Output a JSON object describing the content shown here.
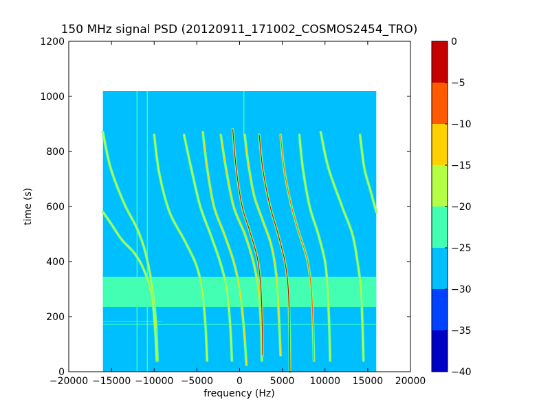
{
  "chart_data": {
    "type": "heatmap",
    "title": "150 MHz signal PSD (20120911_171002_COSMOS2454_TRO)",
    "xlabel": "frequency (Hz)",
    "ylabel": "time (s)",
    "xlim": [
      -20000,
      20000
    ],
    "ylim": [
      0,
      1200
    ],
    "x_ticks": [
      -20000,
      -15000,
      -10000,
      -5000,
      0,
      5000,
      10000,
      15000,
      20000
    ],
    "x_tick_labels": [
      "−20000",
      "−15000",
      "−10000",
      "−5000",
      "0",
      "5000",
      "10000",
      "15000",
      "20000"
    ],
    "y_ticks": [
      0,
      200,
      400,
      600,
      800,
      1000,
      1200
    ],
    "y_tick_labels": [
      "0",
      "200",
      "400",
      "600",
      "800",
      "1000",
      "1200"
    ],
    "data_extent": {
      "x": [
        -16000,
        16000
      ],
      "y": [
        0,
        1020
      ]
    },
    "background_level_db": -28,
    "interference_band": {
      "y": [
        235,
        345
      ],
      "level_db": -22.5
    },
    "stripes": [
      {
        "x": -12000,
        "y": [
          0,
          1020
        ]
      },
      {
        "x": -10800,
        "y": [
          0,
          1020
        ]
      },
      {
        "x": 500,
        "y": [
          860,
          1020
        ]
      }
    ],
    "horizontal_lines": [
      {
        "y": 172,
        "x": [
          -16000,
          16000
        ]
      },
      {
        "y": 182,
        "x": [
          -16000,
          -9000
        ]
      }
    ],
    "traces": [
      {
        "x": [
          -16000,
          -15100,
          -13500,
          -12000,
          -11000,
          -10200,
          -9800,
          -9600
        ],
        "y": [
          870,
          740,
          610,
          520,
          430,
          300,
          180,
          40
        ],
        "peak_db": -20
      },
      {
        "x": [
          -16000,
          -15200,
          -13800,
          -12300,
          -11200,
          -10300,
          -9900,
          -9700
        ],
        "y": [
          580,
          545,
          480,
          430,
          370,
          280,
          160,
          40
        ],
        "peak_db": -20
      },
      {
        "x": [
          -10000,
          -9400,
          -8200,
          -6500,
          -5100,
          -4400,
          -4000,
          -3800
        ],
        "y": [
          860,
          720,
          580,
          480,
          390,
          300,
          170,
          40
        ],
        "peak_db": -21
      },
      {
        "x": [
          -6500,
          -5600,
          -4600,
          -3300,
          -2200,
          -1500,
          -1100,
          -900
        ],
        "y": [
          860,
          730,
          600,
          490,
          390,
          300,
          170,
          40
        ],
        "peak_db": -20
      },
      {
        "x": [
          -4300,
          -3800,
          -3000,
          -1800,
          -700,
          0,
          500,
          800
        ],
        "y": [
          870,
          740,
          600,
          500,
          400,
          300,
          160,
          25
        ],
        "peak_db": -13
      },
      {
        "x": [
          -2200,
          -1600,
          -700,
          600,
          1600,
          2200,
          2500,
          2600
        ],
        "y": [
          860,
          740,
          600,
          500,
          400,
          300,
          170,
          40
        ],
        "peak_db": -14
      },
      {
        "x": [
          -800,
          -400,
          300,
          1200,
          2100,
          2500,
          2650,
          2700
        ],
        "y": [
          880,
          740,
          600,
          510,
          410,
          300,
          170,
          60
        ],
        "peak_db": -4
      },
      {
        "x": [
          600,
          1000,
          1700,
          2700,
          3700,
          4300,
          4600,
          4800
        ],
        "y": [
          860,
          760,
          640,
          550,
          460,
          350,
          200,
          60
        ],
        "peak_db": -14
      },
      {
        "x": [
          2300,
          2700,
          3500,
          4500,
          5300,
          5700,
          5850,
          5900
        ],
        "y": [
          860,
          740,
          610,
          500,
          400,
          300,
          140,
          0
        ],
        "peak_db": -4
      },
      {
        "x": [
          4800,
          5200,
          6000,
          7000,
          7900,
          8400,
          8600,
          8700
        ],
        "y": [
          860,
          740,
          610,
          500,
          410,
          300,
          160,
          40
        ],
        "peak_db": -8
      },
      {
        "x": [
          7000,
          7400,
          8200,
          9200,
          10000,
          10300,
          10500,
          10600
        ],
        "y": [
          860,
          740,
          600,
          500,
          400,
          300,
          160,
          40
        ],
        "peak_db": -17
      },
      {
        "x": [
          9500,
          10400,
          12000,
          13200,
          13800,
          14200,
          14400,
          14500
        ],
        "y": [
          870,
          740,
          600,
          500,
          400,
          300,
          160,
          40
        ],
        "peak_db": -20
      },
      {
        "x": [
          14100,
          14600,
          15300,
          16000
        ],
        "y": [
          860,
          740,
          660,
          580
        ],
        "peak_db": -20
      }
    ],
    "colorbar": {
      "ticks": [
        0,
        -5,
        -10,
        -15,
        -20,
        -25,
        -30,
        -35,
        -40
      ],
      "tick_labels": [
        "0",
        "−5",
        "−10",
        "−15",
        "−20",
        "−25",
        "−30",
        "−35",
        "−40"
      ],
      "range": [
        -40,
        0
      ],
      "levels": [
        {
          "min": -40,
          "max": -35,
          "color": "#0000c4"
        },
        {
          "min": -35,
          "max": -30,
          "color": "#0042ff"
        },
        {
          "min": -30,
          "max": -25,
          "color": "#00bfff"
        },
        {
          "min": -25,
          "max": -20,
          "color": "#43ffb4"
        },
        {
          "min": -20,
          "max": -15,
          "color": "#b4ff43"
        },
        {
          "min": -15,
          "max": -10,
          "color": "#ffd100"
        },
        {
          "min": -10,
          "max": -5,
          "color": "#ff5a00"
        },
        {
          "min": -5,
          "max": 0,
          "color": "#c40000"
        }
      ]
    }
  }
}
